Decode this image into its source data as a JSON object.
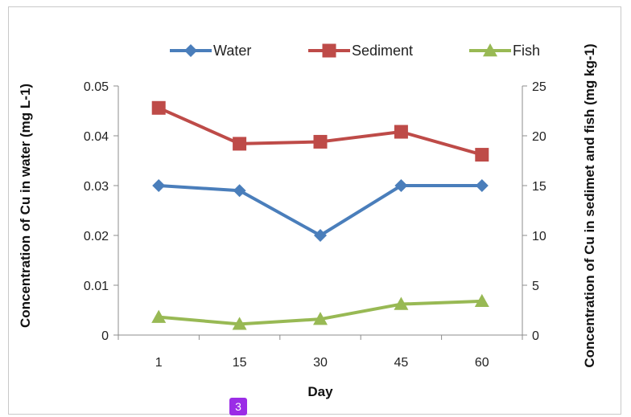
{
  "chart_data": {
    "type": "line",
    "categories": [
      "1",
      "15",
      "30",
      "45",
      "60"
    ],
    "xlabel": "Day",
    "ylabel_left": "Concentration of Cu in water (mg L-1)",
    "ylabel_right": "Concentration of Cu in sedimet and fish (mg kg-1)",
    "ylim_left": [
      0,
      0.05
    ],
    "yticks_left": [
      "0",
      "0.01",
      "0.02",
      "0.03",
      "0.04",
      "0.05"
    ],
    "ylim_right": [
      0,
      25
    ],
    "yticks_right": [
      "0",
      "5",
      "10",
      "15",
      "20",
      "25"
    ],
    "legend_position": "top",
    "grid": false,
    "series": [
      {
        "name": "Water",
        "axis": "left",
        "color": "#4a7ebb",
        "marker": "diamond",
        "values": [
          0.03,
          0.029,
          0.02,
          0.03,
          0.03
        ]
      },
      {
        "name": "Sediment",
        "axis": "right",
        "color": "#be4b48",
        "marker": "square",
        "values": [
          22.8,
          19.2,
          19.4,
          20.4,
          18.1
        ]
      },
      {
        "name": "Fish",
        "axis": "right",
        "color": "#98b954",
        "marker": "triangle",
        "values": [
          1.8,
          1.1,
          1.6,
          3.1,
          3.4
        ]
      }
    ]
  },
  "page_badge": "3"
}
